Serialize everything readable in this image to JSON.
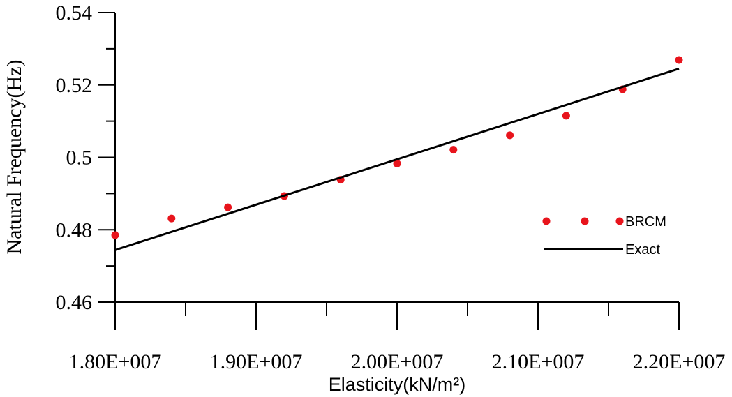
{
  "chart_data": {
    "type": "scatter",
    "title": "",
    "xlabel": "Elasticity(kN/m²)",
    "ylabel": "Natural Frequency(Hz)",
    "xlim": [
      18000000,
      22000000
    ],
    "ylim": [
      0.46,
      0.54
    ],
    "x_ticks": [
      18000000,
      19000000,
      20000000,
      21000000,
      22000000
    ],
    "x_tick_labels": [
      "1.80E+007",
      "1.90E+007",
      "2.00E+007",
      "2.10E+007",
      "2.20E+007"
    ],
    "x_minor_ticks": [
      18500000,
      19500000,
      20500000,
      21500000
    ],
    "y_ticks": [
      0.46,
      0.48,
      0.5,
      0.52,
      0.54
    ],
    "y_tick_labels": [
      "0.46",
      "0.48",
      "0.5",
      "0.52",
      "0.54"
    ],
    "y_minor_ticks": [
      0.47,
      0.49,
      0.51,
      0.53
    ],
    "grid": false,
    "legend_position": "right",
    "series": [
      {
        "name": "BRCM",
        "style": "markers",
        "color": "#e8141c",
        "x": [
          18000000,
          18400000,
          18800000,
          19200000,
          19600000,
          20000000,
          20400000,
          20800000,
          21200000,
          21600000,
          22000000
        ],
        "y": [
          0.4785,
          0.4831,
          0.4862,
          0.4893,
          0.4938,
          0.4983,
          0.5021,
          0.5061,
          0.5115,
          0.5188,
          0.5269
        ]
      },
      {
        "name": "Exact",
        "style": "line",
        "color": "#000000",
        "x": [
          18000000,
          22000000
        ],
        "y": [
          0.4744,
          0.5245
        ]
      }
    ]
  }
}
